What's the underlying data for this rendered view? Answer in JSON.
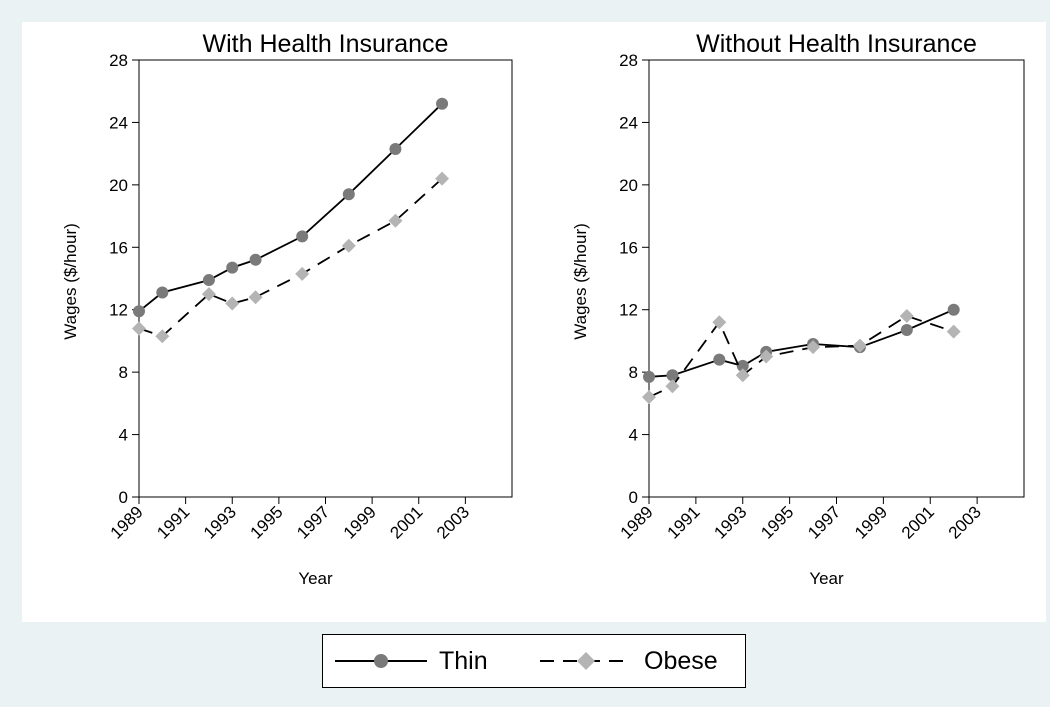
{
  "chart_data": [
    {
      "type": "line",
      "title": "With Health Insurance",
      "xlabel": "Year",
      "ylabel": "Wages ($/hour)",
      "xlim": [
        1989,
        2005
      ],
      "ylim": [
        0,
        28
      ],
      "xticks": [
        "1989",
        "1991",
        "1993",
        "1995",
        "1997",
        "1999",
        "2001",
        "2003"
      ],
      "yticks": [
        "0",
        "4",
        "8",
        "12",
        "16",
        "20",
        "24",
        "28"
      ],
      "grid": false,
      "series": [
        {
          "name": "Thin",
          "x": [
            1989,
            1990,
            1992,
            1993,
            1994,
            1996,
            1998,
            2000,
            2002
          ],
          "y": [
            11.9,
            13.1,
            13.9,
            14.7,
            15.2,
            16.7,
            19.4,
            22.3,
            25.2
          ]
        },
        {
          "name": "Obese",
          "x": [
            1989,
            1990,
            1992,
            1993,
            1994,
            1996,
            1998,
            2000,
            2002
          ],
          "y": [
            10.8,
            10.3,
            13.0,
            12.4,
            12.8,
            14.3,
            16.1,
            17.7,
            20.4
          ]
        }
      ]
    },
    {
      "type": "line",
      "title": "Without Health Insurance",
      "xlabel": "Year",
      "ylabel": "Wages ($/hour)",
      "xlim": [
        1989,
        2005
      ],
      "ylim": [
        0,
        28
      ],
      "xticks": [
        "1989",
        "1991",
        "1993",
        "1995",
        "1997",
        "1999",
        "2001",
        "2003"
      ],
      "yticks": [
        "0",
        "4",
        "8",
        "12",
        "16",
        "20",
        "24",
        "28"
      ],
      "grid": false,
      "series": [
        {
          "name": "Thin",
          "x": [
            1989,
            1990,
            1992,
            1993,
            1994,
            1996,
            1998,
            2000,
            2002
          ],
          "y": [
            7.7,
            7.8,
            8.8,
            8.4,
            9.3,
            9.8,
            9.6,
            10.7,
            12.0
          ]
        },
        {
          "name": "Obese",
          "x": [
            1989,
            1990,
            1992,
            1993,
            1994,
            1996,
            1998,
            2000,
            2002
          ],
          "y": [
            6.4,
            7.1,
            11.2,
            7.8,
            9.0,
            9.6,
            9.7,
            11.6,
            10.6
          ]
        }
      ]
    }
  ],
  "legend": {
    "placement": "bottom-center",
    "items": [
      {
        "label": "Thin",
        "color": "#7a7a7a",
        "marker": "circle",
        "dash": "solid"
      },
      {
        "label": "Obese",
        "color": "#b4b4b4",
        "marker": "diamond",
        "dash": "dashed"
      }
    ]
  },
  "colors": {
    "thin_marker": "#7a7a7a",
    "obese_marker": "#b4b4b4",
    "line": "#000000",
    "background": "#eaf2f3"
  }
}
